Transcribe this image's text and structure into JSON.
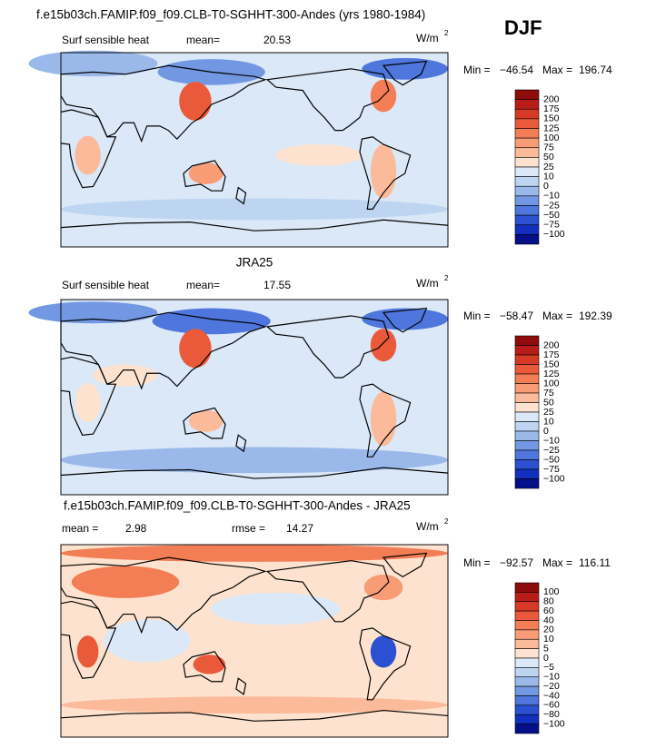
{
  "header": {
    "season": "DJF"
  },
  "panels": [
    {
      "title": "f.e15b03ch.FAMIP.f09_f09.CLB-T0-SGHHT-300-Andes (yrs 1980-1984)",
      "field": "Surf sensible heat",
      "mean_label": "mean=",
      "mean": "20.53",
      "units": "W/m",
      "units_sup": "2",
      "min_label": "Min =",
      "min": "−46.54",
      "max_label": "Max =",
      "max": "196.74",
      "colorbar": {
        "labels": [
          "200",
          "175",
          "150",
          "125",
          "100",
          "75",
          "50",
          "25",
          "10",
          "0",
          "−10",
          "−25",
          "−50",
          "−75",
          "−100"
        ],
        "colors": [
          "#8e0c0c",
          "#b81d17",
          "#d63a25",
          "#ea5a3a",
          "#f37d55",
          "#f89c76",
          "#fbbb9b",
          "#fde3cf",
          "#dbe8f7",
          "#bdd5f1",
          "#9ab9ea",
          "#7398e3",
          "#4e76dc",
          "#2b50d0",
          "#1030bd",
          "#060f8a"
        ]
      }
    },
    {
      "title": "JRA25",
      "field": "Surf sensible heat",
      "mean_label": "mean=",
      "mean": "17.55",
      "units": "W/m",
      "units_sup": "2",
      "min_label": "Min =",
      "min": "−58.47",
      "max_label": "Max =",
      "max": "192.39",
      "colorbar": {
        "labels": [
          "200",
          "175",
          "150",
          "125",
          "100",
          "75",
          "50",
          "25",
          "10",
          "0",
          "−10",
          "−25",
          "−50",
          "−75",
          "−100"
        ],
        "colors": [
          "#8e0c0c",
          "#b81d17",
          "#d63a25",
          "#ea5a3a",
          "#f37d55",
          "#f89c76",
          "#fbbb9b",
          "#fde3cf",
          "#dbe8f7",
          "#bdd5f1",
          "#9ab9ea",
          "#7398e3",
          "#4e76dc",
          "#2b50d0",
          "#1030bd",
          "#060f8a"
        ]
      }
    },
    {
      "title": "f.e15b03ch.FAMIP.f09_f09.CLB-T0-SGHHT-300-Andes - JRA25",
      "mean_label": "mean =",
      "mean": "2.98",
      "rmse_label": "rmse =",
      "rmse": "14.27",
      "units": "W/m",
      "units_sup": "2",
      "min_label": "Min =",
      "min": "−92.57",
      "max_label": "Max =",
      "max": "116.11",
      "colorbar": {
        "labels": [
          "100",
          "80",
          "60",
          "40",
          "20",
          "10",
          "5",
          "0",
          "−5",
          "−10",
          "−20",
          "−40",
          "−60",
          "−80",
          "−100"
        ],
        "colors": [
          "#8e0c0c",
          "#b81d17",
          "#d63a25",
          "#ea5a3a",
          "#f37d55",
          "#f89c76",
          "#fbbb9b",
          "#fde3cf",
          "#dbe8f7",
          "#bdd5f1",
          "#9ab9ea",
          "#7398e3",
          "#4e76dc",
          "#2b50d0",
          "#1030bd",
          "#060f8a"
        ]
      }
    }
  ]
}
